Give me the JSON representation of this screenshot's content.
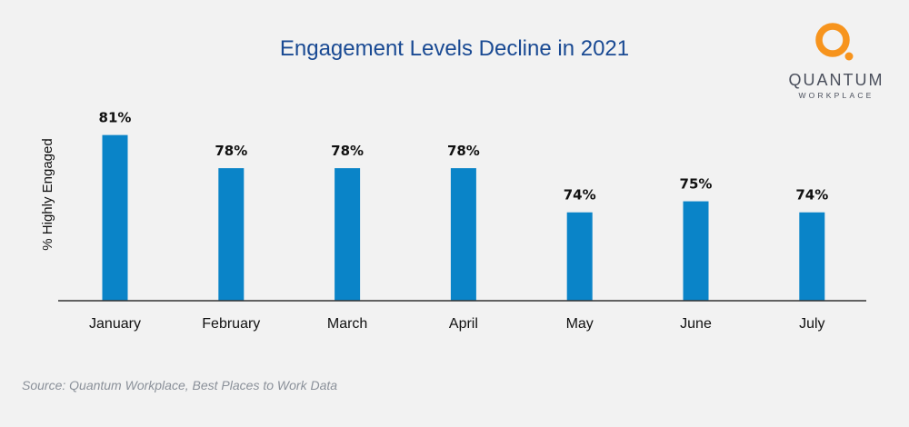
{
  "logo": {
    "name": "QUANTUM",
    "sub": "WORKPLACE",
    "accent": "#f7941d"
  },
  "source": "Source: Quantum Workplace, Best Places to Work Data",
  "chart_data": {
    "type": "bar",
    "title": "Engagement Levels Decline in 2021",
    "xlabel": "",
    "ylabel": "% Highly Engaged",
    "categories": [
      "January",
      "February",
      "March",
      "April",
      "May",
      "June",
      "July"
    ],
    "values": [
      81,
      78,
      78,
      78,
      74,
      75,
      74
    ],
    "value_labels": [
      "81%",
      "78%",
      "78%",
      "78%",
      "74%",
      "75%",
      "74%"
    ],
    "ylim": [
      66,
      85
    ],
    "bar_color": "#0a84c8",
    "grid": false
  }
}
